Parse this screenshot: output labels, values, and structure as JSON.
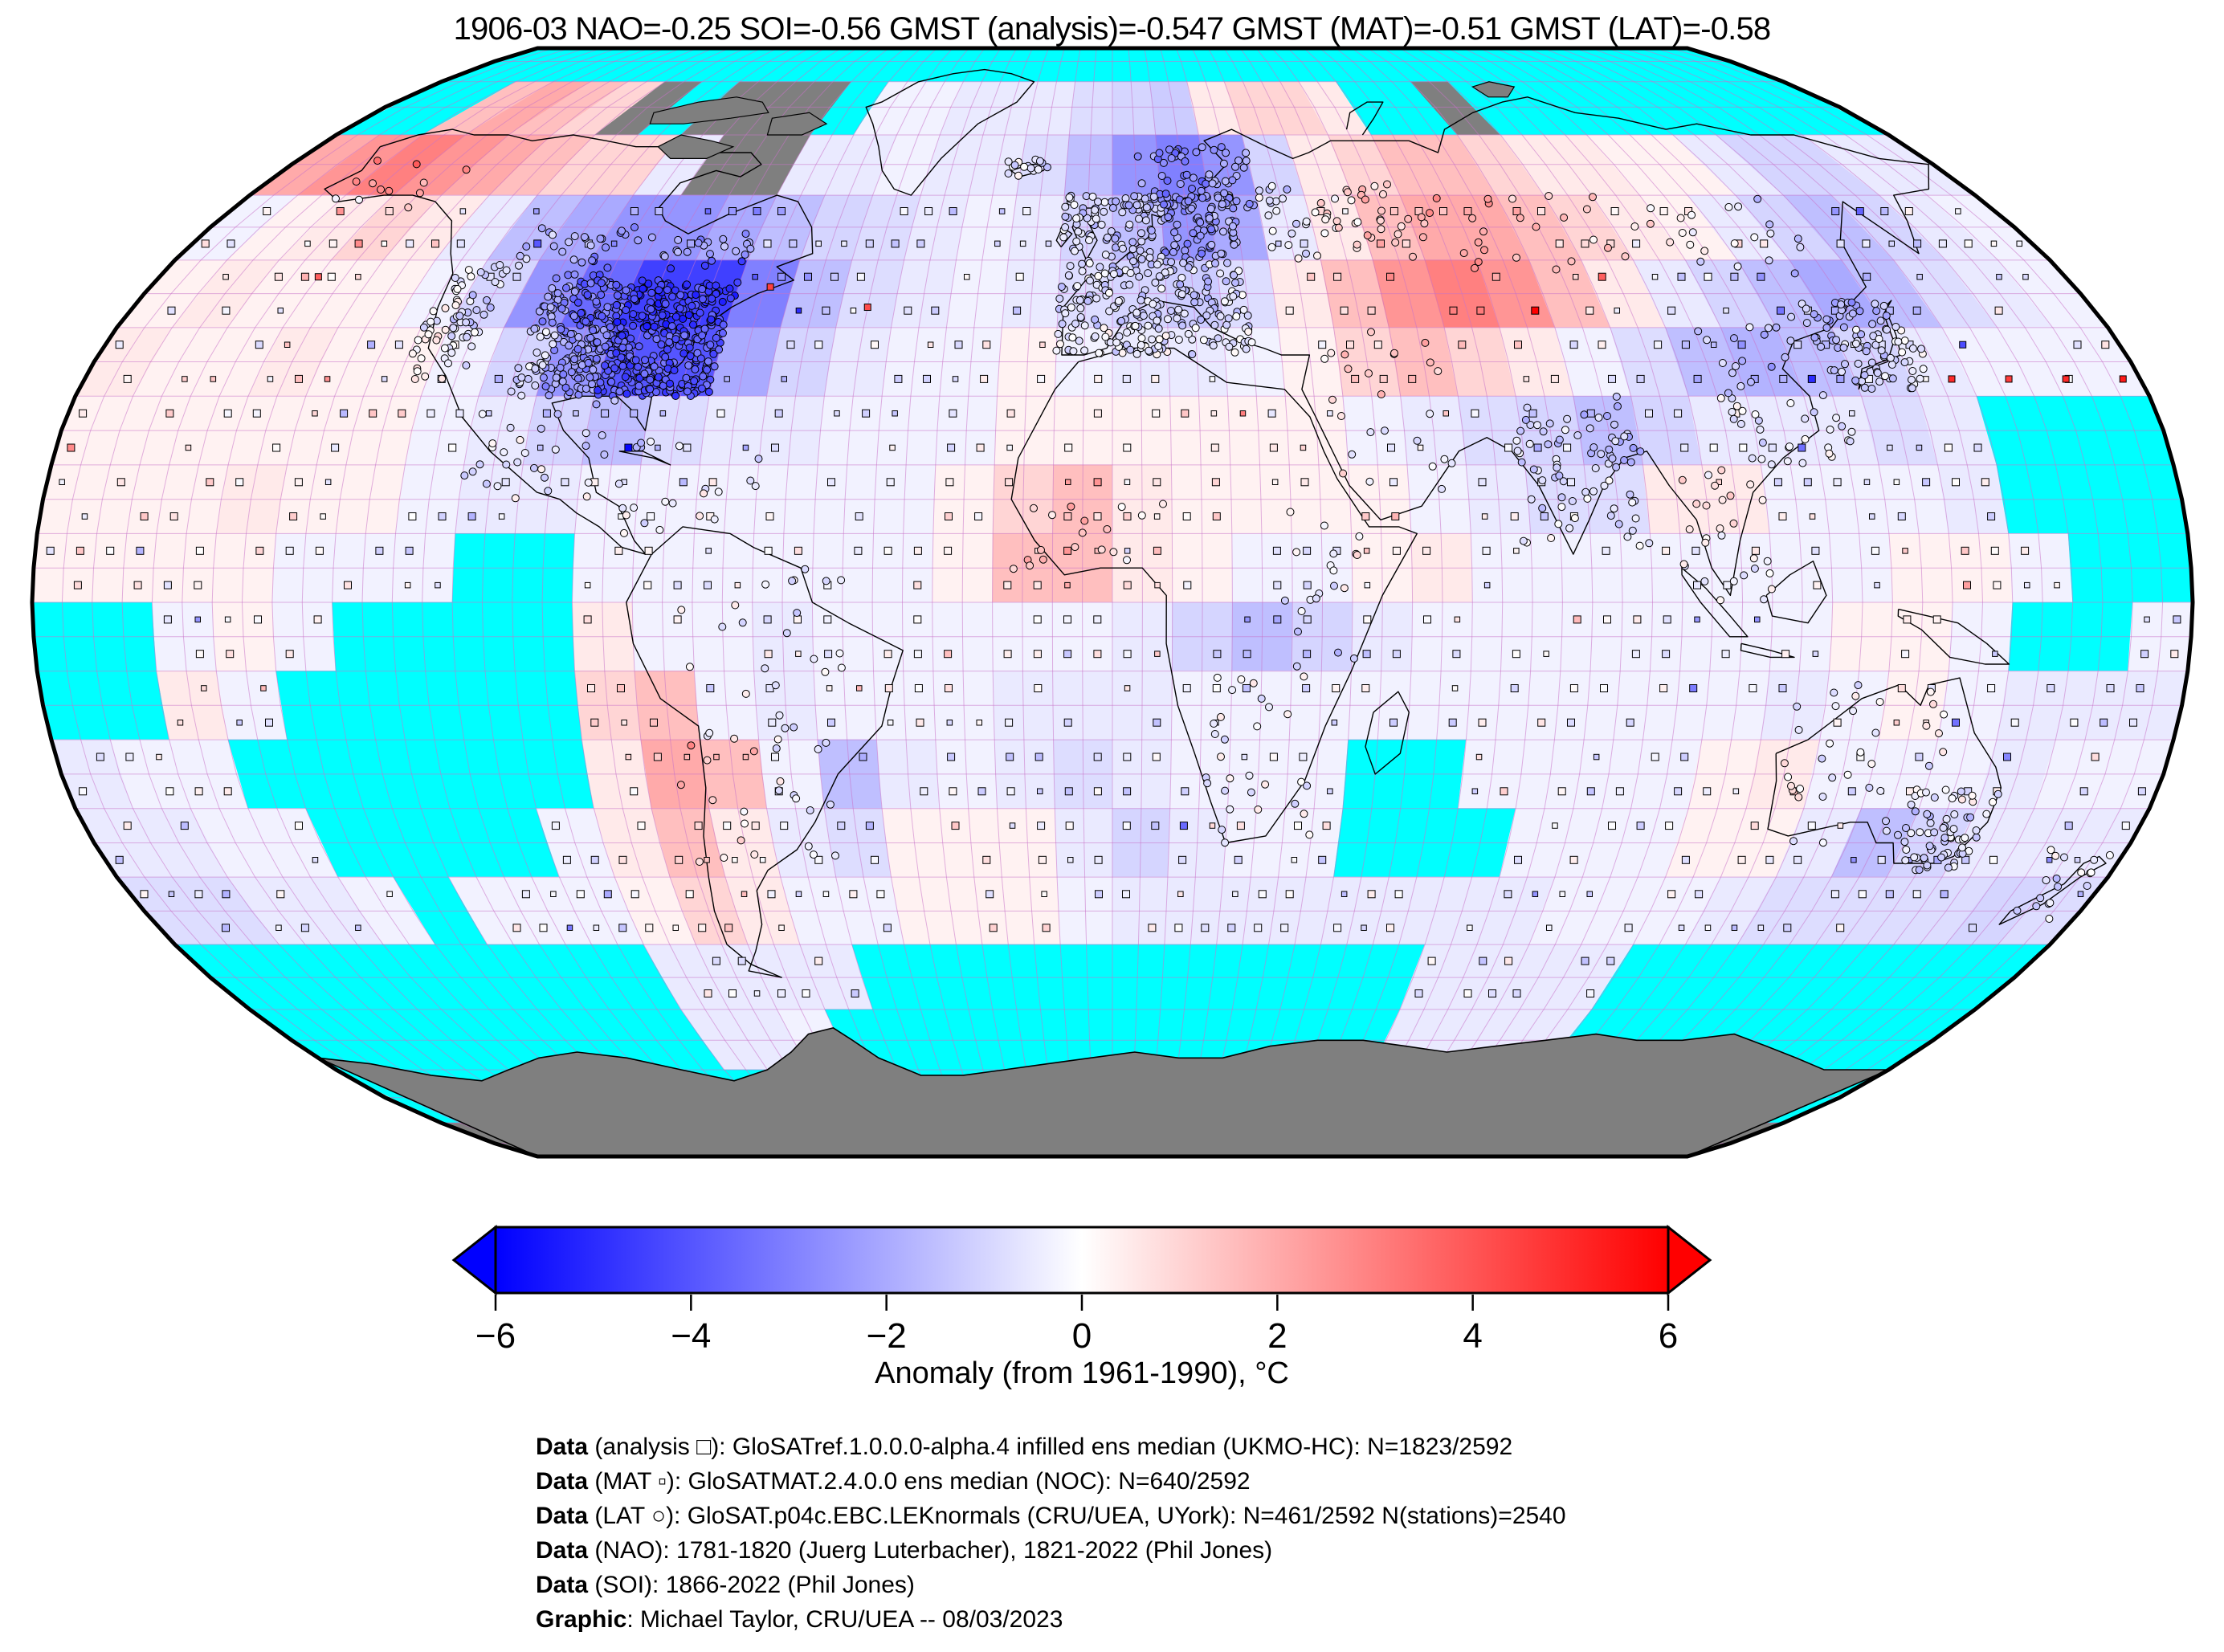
{
  "title": "1906-03 NAO=-0.25 SOI=-0.56 GMST (analysis)=-0.547 GMST (MAT)=-0.51 GMST (LAT)=-0.58",
  "colorbar": {
    "label": "Anomaly (from 1961-1990), °C",
    "min": -6,
    "max": 6,
    "tick_values": [
      -6,
      -4,
      -2,
      0,
      2,
      4,
      6
    ],
    "tick_labels": [
      "−6",
      "−4",
      "−2",
      "0",
      "2",
      "4",
      "6"
    ],
    "color_min": "#0000ff",
    "color_mid": "#ffffff",
    "color_max": "#ff0000"
  },
  "credits": [
    {
      "bold": "Data",
      "rest": " (analysis □): GloSATref.1.0.0.0-alpha.4 infilled ens median (UKMO-HC): N=1823/2592"
    },
    {
      "bold": "Data",
      "rest": " (MAT ▫): GloSATMAT.2.4.0.0 ens median (NOC): N=640/2592"
    },
    {
      "bold": "Data",
      "rest": " (LAT ○): GloSAT.p04c.EBC.LEKnormals (CRU/UEA, UYork): N=461/2592 N(stations)=2540"
    },
    {
      "bold": "Data",
      "rest": " (NAO): 1781-1820 (Juerg Luterbacher), 1821-2022 (Phil Jones)"
    },
    {
      "bold": "Data",
      "rest": " (SOI): 1866-2022 (Phil Jones)"
    },
    {
      "bold": "Graphic",
      "rest": ": Michael Taylor, CRU/UEA -- 08/03/2023"
    }
  ],
  "map": {
    "projection": "robinson",
    "missing_color": "#00ffff",
    "nodata_land_color": "#7f7f7f",
    "graticule_color": "#c873c8",
    "cell_deg": 10,
    "anomaly_grid": [
      [
        "c",
        "c",
        "c",
        "c",
        "c",
        "c",
        "c",
        "c",
        "c",
        "c",
        "c",
        "c",
        "c",
        "c",
        "c",
        "c",
        "c",
        "c",
        "c",
        "c",
        "c",
        "c",
        "c",
        "c",
        "c",
        "c",
        "c",
        "c",
        "c",
        "c",
        "c",
        "c",
        "c",
        "c",
        "c",
        "c"
      ],
      [
        "c",
        "c",
        1.5,
        2,
        1.5,
        1,
        "g",
        "c",
        "g",
        "g",
        "g",
        "c",
        -0.3,
        -0.3,
        -0.5,
        -0.5,
        -0.5,
        -0.8,
        -1,
        -1.2,
        0.5,
        1,
        1,
        0.5,
        "c",
        "c",
        "g",
        "c",
        "c",
        "c",
        "c",
        "c",
        "c",
        "c",
        "c",
        "c"
      ],
      [
        2,
        2.5,
        3,
        2.5,
        2,
        1.5,
        1,
        1,
        -0.5,
        "g",
        "g",
        -0.5,
        -0.5,
        -0.3,
        -0.5,
        -0.5,
        -0.8,
        -1.5,
        -2.5,
        -3,
        -2.5,
        -1,
        0.5,
        1,
        1.5,
        1.5,
        1,
        0.5,
        0.5,
        0.3,
        0.3,
        -0.5,
        -1,
        -1,
        -0.5,
        -0.5
      ],
      [
        -0.3,
        0.3,
        0.5,
        1,
        0.5,
        -0.5,
        -1.5,
        -2,
        -2.5,
        -2.5,
        -2,
        -1.5,
        -1,
        -0.8,
        -0.5,
        -0.3,
        -0.5,
        -1,
        -1.5,
        -2.5,
        -2,
        -0.5,
        0.5,
        1.5,
        2,
        2,
        1.5,
        1,
        0.5,
        0.3,
        -0.5,
        -1,
        -1.5,
        -1,
        -0.5,
        -0.3
      ],
      [
        0.3,
        0.5,
        0.3,
        0.3,
        0.3,
        -0.3,
        -1,
        -2.5,
        -3.5,
        -4.5,
        -4.5,
        -3,
        -1.5,
        -0.8,
        -0.5,
        -0.3,
        -0.5,
        -0.8,
        -1,
        -1.2,
        -0.8,
        0.5,
        1.5,
        2.5,
        3,
        2.5,
        1.5,
        0.5,
        -0.5,
        -1,
        -1.5,
        -2,
        -1.5,
        -0.8,
        -0.5,
        -0.3
      ],
      [
        0.5,
        0.3,
        0.3,
        0.5,
        0.3,
        0.3,
        -0.3,
        -1,
        -2.5,
        -4,
        -4,
        -2,
        -1,
        -0.5,
        -0.3,
        -0.3,
        0.3,
        -0.3,
        -0.5,
        -0.5,
        -0.3,
        0.3,
        1,
        1.5,
        1,
        0.5,
        -0.3,
        -0.8,
        -1.5,
        -1.8,
        -1.5,
        -1,
        -0.5,
        -0.3,
        -0.3,
        -0.3
      ],
      [
        0.3,
        0.3,
        0.3,
        0.3,
        0.3,
        0.3,
        -0.3,
        -0.5,
        -1,
        -1.5,
        -0.8,
        -0.5,
        -0.5,
        -0.3,
        -0.3,
        -0.3,
        0.3,
        0.3,
        0.3,
        0.3,
        0.3,
        0.3,
        -0.3,
        -0.5,
        -0.8,
        -1,
        -1.5,
        -1,
        -0.5,
        -0.5,
        -0.5,
        -0.8,
        -0.5,
        "c",
        "c",
        "c"
      ],
      [
        0.3,
        0.3,
        0.3,
        0.5,
        0.3,
        0.3,
        -0.3,
        -0.5,
        -0.5,
        -0.3,
        -0.3,
        -0.3,
        -0.3,
        -0.3,
        -0.3,
        0.3,
        1,
        1.5,
        0.5,
        0.3,
        0.3,
        0.3,
        0.3,
        -0.3,
        -0.5,
        -0.8,
        -0.8,
        0.5,
        0.5,
        -0.3,
        -0.3,
        -0.3,
        -0.5,
        "c",
        "c",
        "c"
      ],
      [
        0.3,
        0.3,
        0.3,
        0.3,
        -0.3,
        -0.3,
        -0.3,
        "c",
        "c",
        -0.3,
        -0.3,
        -0.3,
        -0.3,
        -0.3,
        -0.3,
        0.3,
        1.5,
        1.5,
        0.5,
        0.3,
        -0.3,
        -0.3,
        0.3,
        0.5,
        -0.3,
        -0.3,
        -0.3,
        -0.3,
        -0.3,
        -0.3,
        -0.3,
        0.3,
        0.3,
        -0.3,
        "c",
        "c"
      ],
      [
        "c",
        "c",
        -0.3,
        0.3,
        -0.3,
        "c",
        "c",
        "c",
        "c",
        0.5,
        -0.3,
        -0.3,
        -0.5,
        -0.3,
        -0.3,
        -0.3,
        -0.3,
        -0.3,
        -0.5,
        -1,
        -1.5,
        -1,
        -0.5,
        -0.3,
        -0.3,
        -0.3,
        -0.3,
        -0.3,
        -0.3,
        -0.3,
        0.3,
        0.3,
        -0.3,
        "c",
        "c",
        -0.3
      ],
      [
        "c",
        "c",
        0.5,
        -0.3,
        "c",
        "c",
        "c",
        "c",
        "c",
        1,
        1.5,
        -0.3,
        -0.5,
        -0.3,
        -0.3,
        -0.3,
        -0.5,
        -0.5,
        -0.5,
        -0.3,
        -0.3,
        -0.3,
        -0.3,
        -0.3,
        -0.3,
        -0.3,
        -0.3,
        -0.3,
        -0.3,
        -0.5,
        -0.3,
        0.3,
        -0.3,
        -0.5,
        -0.5,
        -0.5
      ],
      [
        -0.5,
        -0.3,
        -0.3,
        "c",
        "c",
        "c",
        "c",
        "c",
        "c",
        0.5,
        2,
        1.5,
        -0.3,
        -1.5,
        -0.5,
        -0.3,
        -0.5,
        -0.8,
        -0.5,
        -0.3,
        -0.3,
        -0.3,
        "c",
        "c",
        -0.3,
        -0.3,
        -0.3,
        -0.3,
        0.3,
        0.5,
        -0.3,
        -0.3,
        -0.3,
        -0.5,
        -0.3,
        -0.3
      ],
      [
        -0.5,
        -0.5,
        -0.3,
        -0.3,
        "c",
        "c",
        "c",
        "c",
        -0.3,
        0.5,
        1.5,
        0.5,
        -0.5,
        -0.8,
        0.3,
        0.3,
        0.3,
        -0.5,
        -1,
        -0.5,
        -0.3,
        -0.3,
        "c",
        "c",
        "c",
        -0.3,
        -0.3,
        -0.3,
        0.3,
        0.3,
        -0.5,
        -1.5,
        -1,
        -0.5,
        -0.5,
        -0.5
      ],
      [
        -0.8,
        -0.8,
        -0.5,
        -0.5,
        -0.3,
        "c",
        -0.3,
        -0.3,
        -0.3,
        0.3,
        1,
        0.5,
        -0.3,
        -0.3,
        0.3,
        0.3,
        0.3,
        -0.3,
        -0.5,
        -0.5,
        -0.5,
        -0.5,
        -0.5,
        -0.5,
        -0.5,
        -0.5,
        -0.3,
        -0.3,
        -0.3,
        -0.5,
        -0.8,
        -0.8,
        -0.8,
        -0.8,
        -1,
        -0.8
      ],
      [
        "c",
        "c",
        "c",
        "c",
        "c",
        "c",
        "c",
        "c",
        "c",
        -0.5,
        -0.5,
        -0.5,
        -0.5,
        "c",
        "c",
        "c",
        "c",
        "c",
        "c",
        "c",
        "c",
        "c",
        "c",
        "c",
        -0.5,
        -0.5,
        -0.5,
        -0.5,
        "c",
        "c",
        "c",
        "c",
        "c",
        "c",
        "c",
        "c"
      ],
      [
        "c",
        "c",
        "c",
        "c",
        "c",
        "c",
        "c",
        "c",
        "c",
        -0.5,
        -0.5,
        -0.3,
        "c",
        "c",
        "c",
        "c",
        "c",
        "c",
        "c",
        "c",
        "c",
        "c",
        "c",
        "c",
        -0.5,
        -0.5,
        -0.5,
        -0.5,
        "c",
        "c",
        "c",
        "c",
        "c",
        "c",
        "c",
        "c"
      ],
      [
        "c",
        "c",
        "c",
        "c",
        "c",
        "c",
        "c",
        "c",
        "c",
        "c",
        "c",
        "c",
        "c",
        "c",
        "c",
        "c",
        "c",
        "c",
        "c",
        "c",
        "c",
        "c",
        "c",
        "c",
        "c",
        "c",
        "c",
        "c",
        "c",
        "c",
        "c",
        "c",
        "c",
        "c",
        "c",
        "c"
      ],
      [
        "g",
        "g",
        "g",
        "g",
        "g",
        "g",
        "g",
        "g",
        "g",
        "g",
        "g",
        "g",
        "g",
        "g",
        "g",
        "g",
        "g",
        "g",
        "g",
        "g",
        "g",
        "g",
        "g",
        "g",
        "g",
        "g",
        "g",
        "g",
        "g",
        "g",
        "g",
        "g",
        "g",
        "g",
        "g",
        "g"
      ]
    ],
    "station_clusters": [
      [
        "usa-east",
        -95,
        -70,
        30,
        47,
        430
      ],
      [
        "usa-central",
        -105,
        -95,
        30,
        48,
        130
      ],
      [
        "us-west",
        -125,
        -114,
        32,
        49,
        70
      ],
      [
        "canada-south",
        -120,
        -70,
        48,
        55,
        55
      ],
      [
        "alaska",
        -165,
        -140,
        58,
        68,
        12
      ],
      [
        "mexico",
        -110,
        -86,
        15,
        30,
        30
      ],
      [
        "caribbean",
        -85,
        -60,
        10,
        25,
        22
      ],
      [
        "south-america",
        -75,
        -45,
        -40,
        5,
        50
      ],
      [
        "europe",
        -10,
        25,
        36,
        60,
        430
      ],
      [
        "scandinavia",
        5,
        30,
        58,
        68,
        70
      ],
      [
        "iceland",
        -23,
        -14,
        63,
        66,
        15
      ],
      [
        "russia-west",
        30,
        60,
        50,
        62,
        55
      ],
      [
        "siberia",
        60,
        135,
        48,
        60,
        50
      ],
      [
        "east-asia",
        105,
        127,
        20,
        42,
        55
      ],
      [
        "japan-korea",
        126,
        145,
        31,
        44,
        90
      ],
      [
        "india",
        68,
        90,
        8,
        30,
        80
      ],
      [
        "se-asia",
        95,
        110,
        0,
        20,
        28
      ],
      [
        "middle-east",
        35,
        58,
        15,
        40,
        25
      ],
      [
        "africa-west",
        -17,
        10,
        4,
        16,
        18
      ],
      [
        "africa-east",
        28,
        42,
        -10,
        15,
        20
      ],
      [
        "africa-south",
        15,
        35,
        -35,
        -10,
        30
      ],
      [
        "australia-se",
        138,
        153,
        -39,
        -27,
        70
      ],
      [
        "australia-other",
        113,
        145,
        -35,
        -12,
        35
      ],
      [
        "new-zealand",
        166,
        178,
        -47,
        -36,
        18
      ]
    ],
    "mat_special_squares": [
      {
        "lon": 147,
        "lat": 32.5,
        "v": 5
      },
      {
        "lon": 157,
        "lat": 32.5,
        "v": 4.6
      },
      {
        "lon": 167,
        "lat": 32.5,
        "v": 5
      },
      {
        "lon": 177,
        "lat": 32.5,
        "v": 5.4
      },
      {
        "lon": -64,
        "lat": 46,
        "v": 4.5
      },
      {
        "lon": -45,
        "lat": 43,
        "v": 4.2
      },
      {
        "lon": 152,
        "lat": 37.5,
        "v": -4.2
      },
      {
        "lon": -150,
        "lat": 47.5,
        "v": 3.8
      }
    ]
  }
}
